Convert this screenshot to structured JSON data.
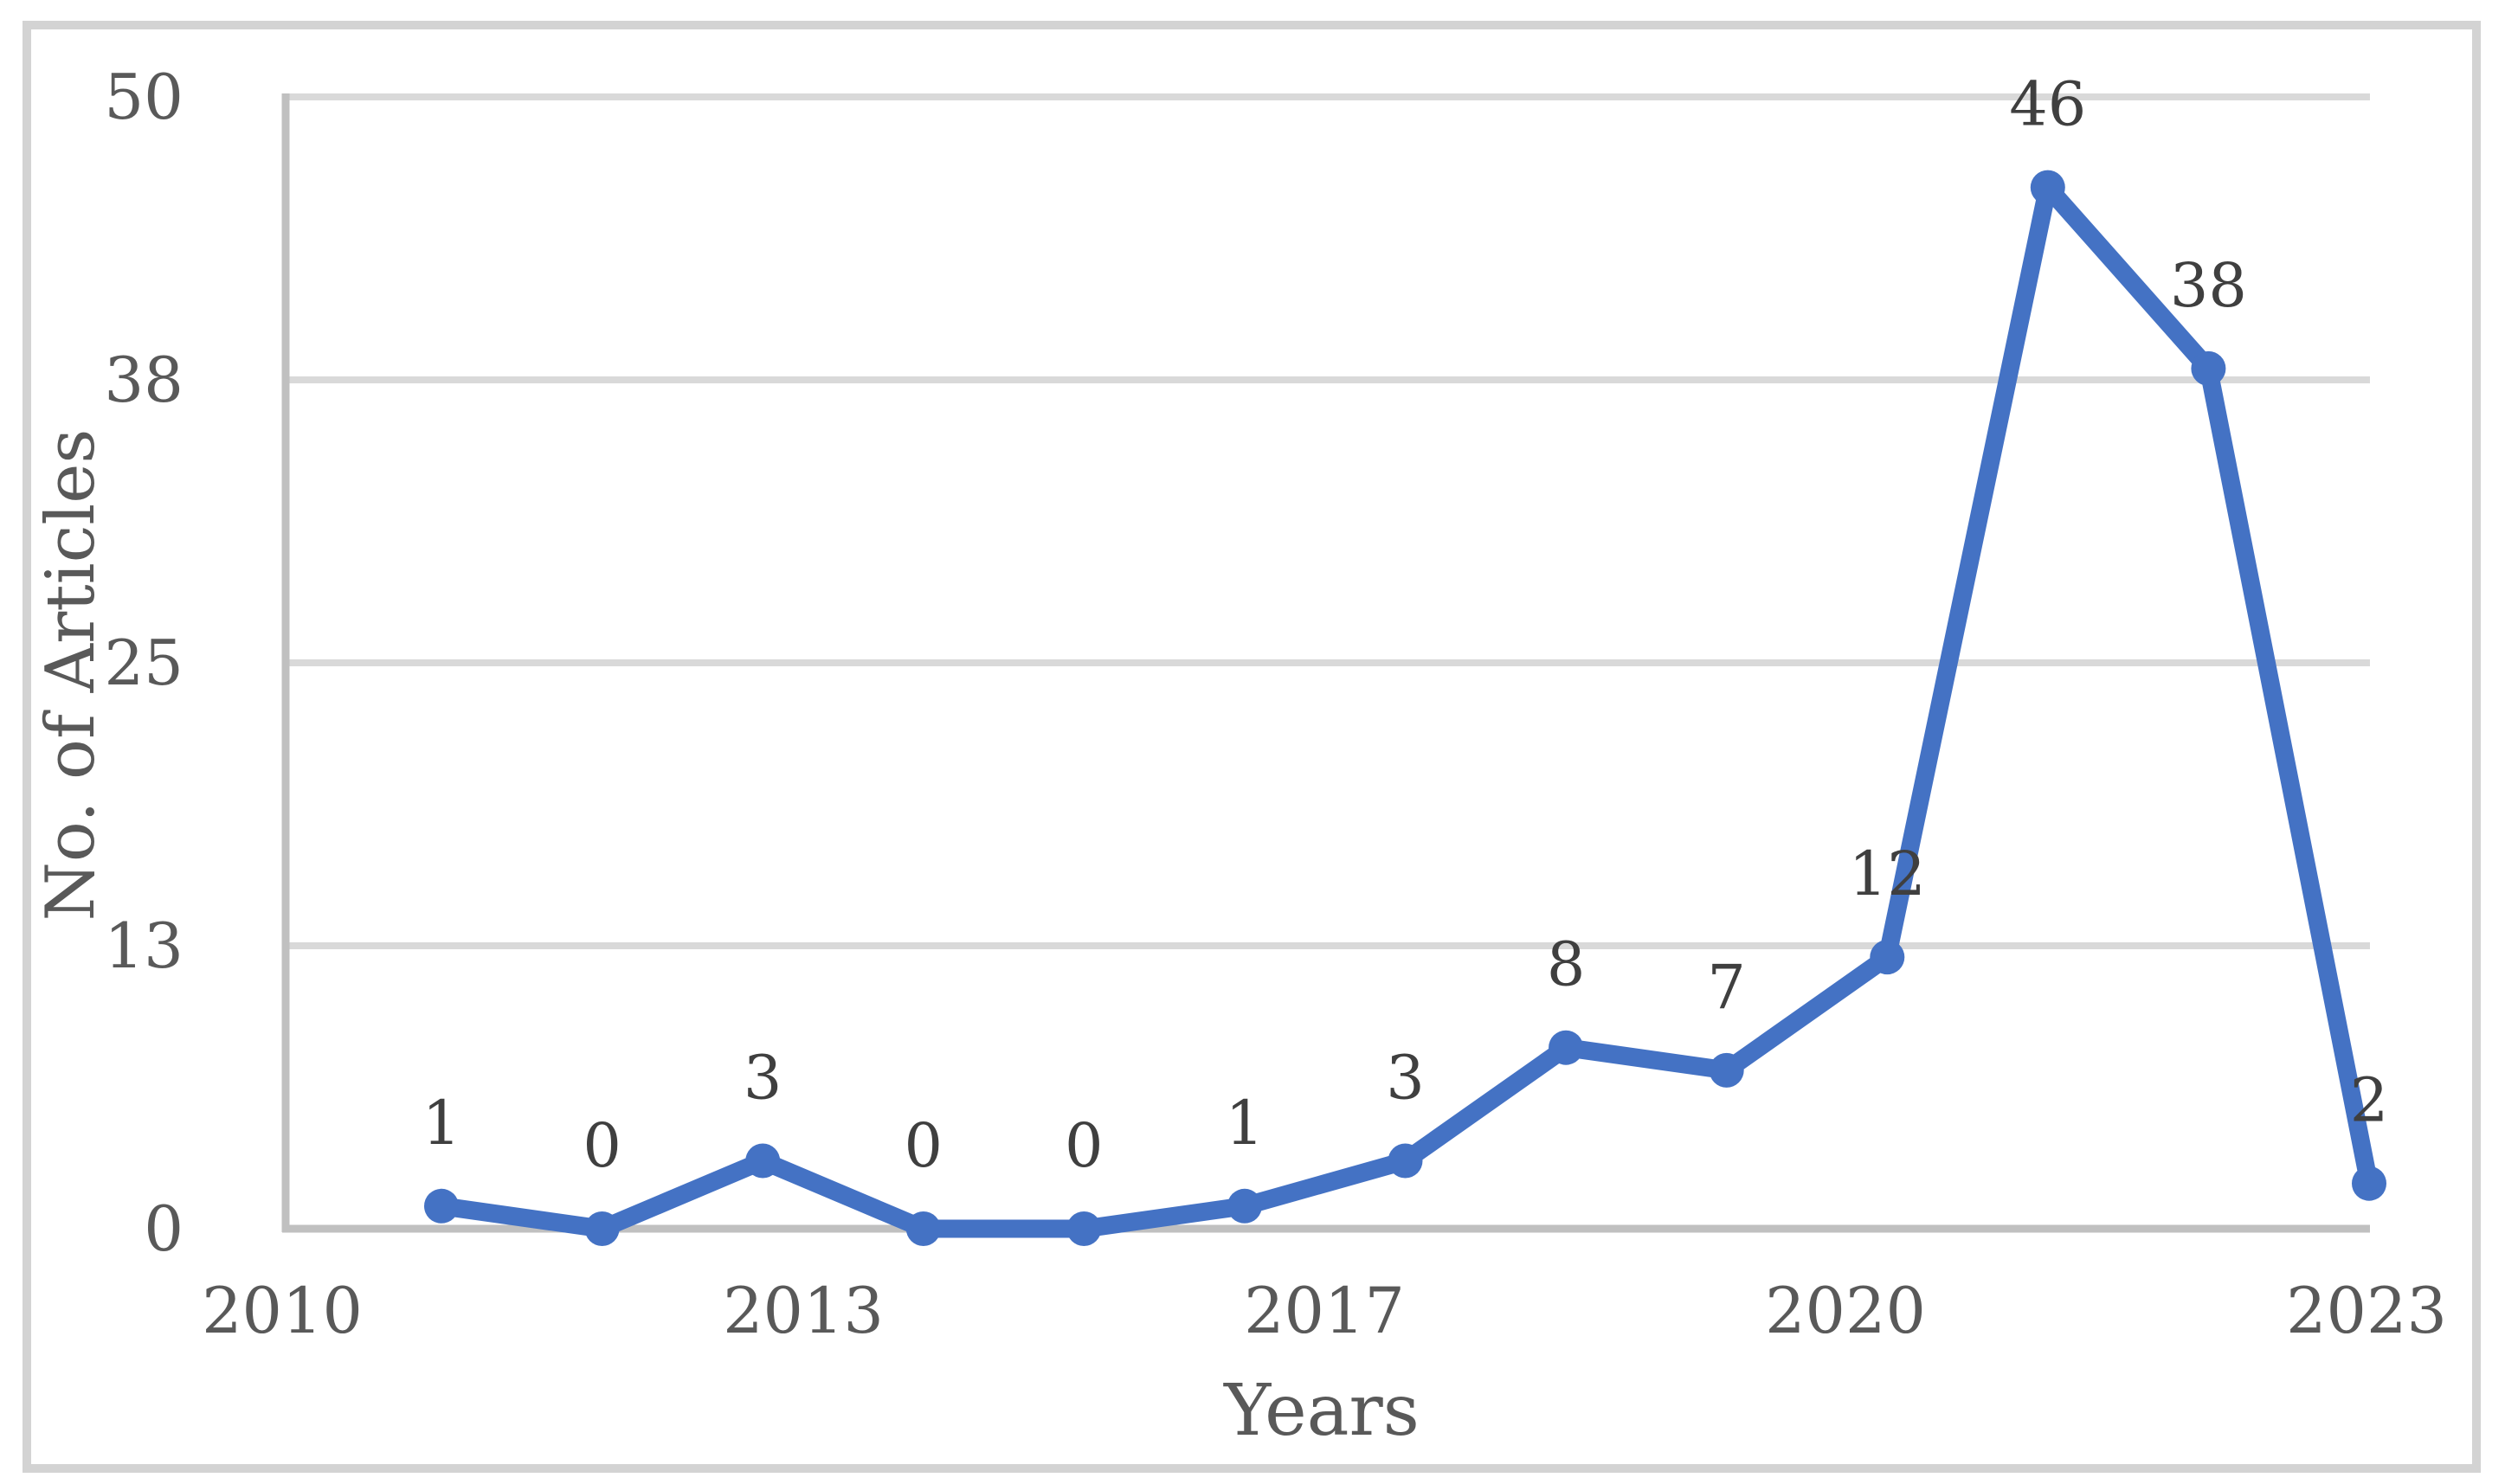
{
  "chart_data": {
    "type": "line",
    "title": "",
    "xlabel": "Years",
    "ylabel": "No. of Articles",
    "series": [
      {
        "name": "No. of Articles",
        "values": [
          1,
          0,
          3,
          0,
          0,
          1,
          3,
          8,
          7,
          12,
          46,
          38,
          2
        ],
        "data_labels": [
          "1",
          "0",
          "3",
          "0",
          "0",
          "1",
          "3",
          "8",
          "7",
          "12",
          "46",
          "38",
          "2"
        ],
        "marker": "circle",
        "color": "#4472C4"
      }
    ],
    "x_tick_labels": [
      "2010",
      "2013",
      "2017",
      "2020",
      "2023"
    ],
    "y_axis": {
      "min": 0,
      "max": 50,
      "tick_labels": [
        "0",
        "13",
        "25",
        "38",
        "50"
      ],
      "tick_values": [
        0,
        12.5,
        25,
        37.5,
        50
      ]
    },
    "grid": "horizontal-only",
    "legend": "none",
    "colors": {
      "line": "#4472C4",
      "marker": "#4472C4",
      "gridline": "#D9D9D9",
      "axis_line": "#C0C0C0",
      "tick_text": "#595959",
      "axis_title_text": "#595959",
      "data_label_text": "#3F3F3F",
      "figure_border": "#D3D3D3",
      "background": "#FFFFFF"
    }
  }
}
